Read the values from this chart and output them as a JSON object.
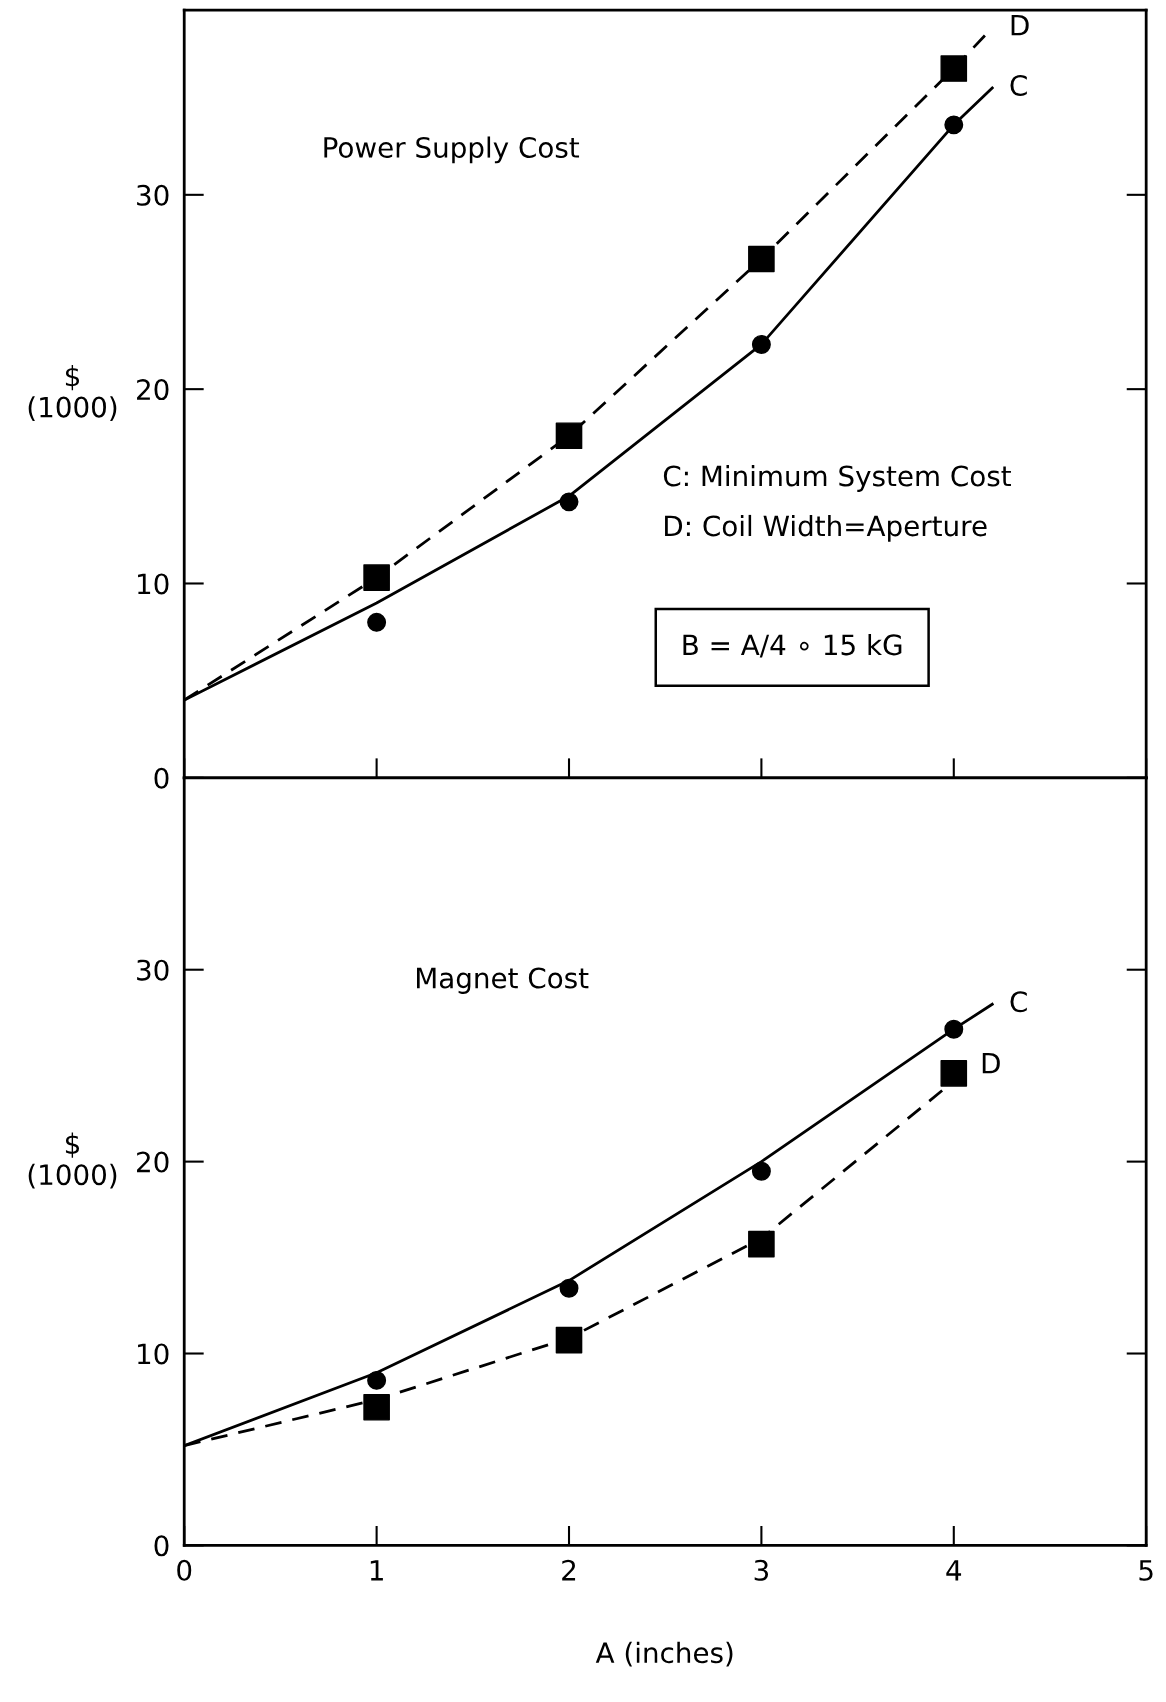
{
  "chart_data": [
    {
      "type": "line",
      "title": "Power Supply Cost",
      "ylabel": "$\n(1000)",
      "xlim": [
        0,
        5
      ],
      "xticks": [
        0,
        1,
        2,
        3,
        4,
        5
      ],
      "ylim": [
        0,
        39.5
      ],
      "yticks": [
        0,
        10,
        20,
        30
      ],
      "tick_labels": "y",
      "annotations": [
        "C: Minimum System Cost",
        "D: Coil Width=Aperture",
        "B = A/4 ∘ 15 kG"
      ],
      "series": [
        {
          "name": "D",
          "line_style": "dashed",
          "marker": "none",
          "color": "#000000",
          "x": [
            0,
            1,
            2,
            3,
            4,
            4.2
          ],
          "values": [
            4.0,
            10.3,
            17.6,
            26.7,
            36.5,
            38.6
          ]
        },
        {
          "name": "C",
          "line_style": "solid",
          "marker": "none",
          "color": "#000000",
          "x": [
            0,
            1,
            2,
            3,
            4,
            4.2
          ],
          "values": [
            4.0,
            9.0,
            14.5,
            22.3,
            33.6,
            35.5
          ]
        },
        {
          "type": "scatter",
          "marker": "square",
          "color": "#000000",
          "x": [
            1,
            2,
            3,
            4
          ],
          "values": [
            10.3,
            17.6,
            26.7,
            36.5
          ]
        },
        {
          "type": "scatter",
          "marker": "circle",
          "color": "#000000",
          "x": [
            1,
            2,
            3,
            4
          ],
          "values": [
            8.0,
            14.2,
            22.3,
            33.6
          ]
        }
      ]
    },
    {
      "type": "line",
      "title": "Magnet Cost",
      "ylabel": "$\n(1000)",
      "xlabel": "A (inches)",
      "xlim": [
        0,
        5
      ],
      "xticks": [
        0,
        1,
        2,
        3,
        4,
        5
      ],
      "ylim": [
        0,
        40
      ],
      "yticks": [
        0,
        10,
        20,
        30
      ],
      "series": [
        {
          "name": "C",
          "line_style": "solid",
          "marker": "none",
          "color": "#000000",
          "x": [
            0,
            1,
            2,
            3,
            4,
            4.2
          ],
          "values": [
            5.2,
            9.0,
            13.8,
            20.0,
            26.9,
            28.2
          ]
        },
        {
          "name": "D",
          "line_style": "dashed",
          "marker": "none",
          "color": "#000000",
          "x": [
            0,
            1,
            2,
            3,
            4,
            4.05
          ],
          "values": [
            5.2,
            7.6,
            10.8,
            16.0,
            24.2,
            25.0
          ]
        },
        {
          "type": "scatter",
          "marker": "circle",
          "color": "#000000",
          "x": [
            1,
            2,
            3,
            4
          ],
          "values": [
            8.6,
            13.4,
            19.5,
            26.9
          ]
        },
        {
          "type": "scatter",
          "marker": "square",
          "color": "#000000",
          "x": [
            1,
            2,
            3,
            4
          ],
          "values": [
            7.2,
            10.7,
            15.7,
            24.6
          ]
        }
      ]
    }
  ]
}
